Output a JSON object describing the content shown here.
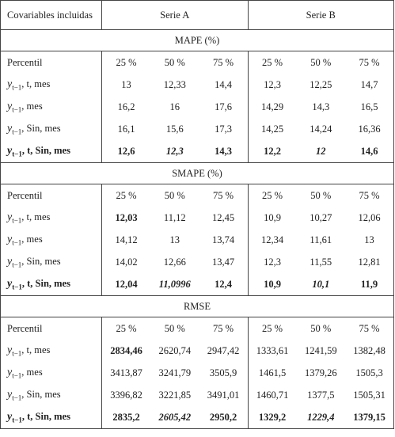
{
  "header": {
    "first": "Covariables incluidas",
    "groups": [
      "Serie A",
      "Serie B"
    ]
  },
  "sections": [
    {
      "title": "MAPE (%)",
      "rows": [
        {
          "label": "Percentil",
          "cells": [
            "25 %",
            "50 %",
            "75 %",
            "25 %",
            "50 %",
            "75 %"
          ]
        },
        {
          "label": {
            "y": "y",
            "sub": "t−1",
            "rest": ", t, mes"
          },
          "cells": [
            "13",
            "12,33",
            "14,4",
            "12,3",
            "12,25",
            "14,7"
          ]
        },
        {
          "label": {
            "y": "y",
            "sub": "t−1",
            "rest": ", mes"
          },
          "cells": [
            "16,2",
            "16",
            "17,6",
            "14,29",
            "14,3",
            "16,5"
          ]
        },
        {
          "label": {
            "y": "y",
            "sub": "t−1",
            "rest": ", Sin, mes"
          },
          "cells": [
            "16,1",
            "15,6",
            "17,3",
            "14,25",
            "14,24",
            "16,36"
          ]
        },
        {
          "label": {
            "y": "y",
            "sub": "t−1",
            "rest": ", t, Sin, mes"
          },
          "label_bold": true,
          "cells": [
            "12,6",
            "12,3",
            "14,3",
            "12,2",
            "12",
            "14,6"
          ],
          "bold": [
            0,
            1,
            2,
            3,
            4,
            5
          ],
          "italic": [
            1,
            4
          ]
        }
      ]
    },
    {
      "title": "SMAPE (%)",
      "rows": [
        {
          "label": "Percentil",
          "cells": [
            "25 %",
            "50 %",
            "75 %",
            "25 %",
            "50 %",
            "75 %"
          ]
        },
        {
          "label": {
            "y": "y",
            "sub": "t−1",
            "rest": ", t, mes"
          },
          "cells": [
            "12,03",
            "11,12",
            "12,45",
            "10,9",
            "10,27",
            "12,06"
          ],
          "bold": [
            0
          ]
        },
        {
          "label": {
            "y": "y",
            "sub": "t−1",
            "rest": ", mes"
          },
          "cells": [
            "14,12",
            "13",
            "13,74",
            "12,34",
            "11,61",
            "13"
          ]
        },
        {
          "label": {
            "y": "y",
            "sub": "t−1",
            "rest": ", Sin, mes"
          },
          "cells": [
            "14,02",
            "12,66",
            "13,47",
            "12,3",
            "11,55",
            "12,81"
          ]
        },
        {
          "label": {
            "y": "y",
            "sub": "t−1",
            "rest": ", t, Sin, mes"
          },
          "label_bold": true,
          "cells": [
            "12,04",
            "11,0996",
            "12,4",
            "10,9",
            "10,1",
            "11,9"
          ],
          "bold": [
            0,
            1,
            2,
            3,
            4,
            5
          ],
          "italic": [
            1,
            4
          ]
        }
      ]
    },
    {
      "title": "RMSE",
      "rows": [
        {
          "label": "Percentil",
          "cells": [
            "25 %",
            "50 %",
            "75 %",
            "25 %",
            "50 %",
            "75 %"
          ]
        },
        {
          "label": {
            "y": "y",
            "sub": "t−1",
            "rest": ", t, mes"
          },
          "cells": [
            "2834,46",
            "2620,74",
            "2947,42",
            "1333,61",
            "1241,59",
            "1382,48"
          ],
          "bold": [
            0
          ]
        },
        {
          "label": {
            "y": "y",
            "sub": "t−1",
            "rest": ", mes"
          },
          "cells": [
            "3413,87",
            "3241,79",
            "3505,9",
            "1461,5",
            "1379,26",
            "1505,3"
          ]
        },
        {
          "label": {
            "y": "y",
            "sub": "t−1",
            "rest": ", Sin, mes"
          },
          "cells": [
            "3396,82",
            "3221,85",
            "3491,01",
            "1460,71",
            "1377,5",
            "1505,31"
          ]
        },
        {
          "label": {
            "y": "y",
            "sub": "t−1",
            "rest": ", t, Sin, mes"
          },
          "label_bold": true,
          "cells": [
            "2835,2",
            "2605,42",
            "2950,2",
            "1329,2",
            "1229,4",
            "1379,15"
          ],
          "bold": [
            0,
            1,
            2,
            3,
            4,
            5
          ],
          "italic": [
            1,
            4
          ]
        }
      ]
    }
  ]
}
